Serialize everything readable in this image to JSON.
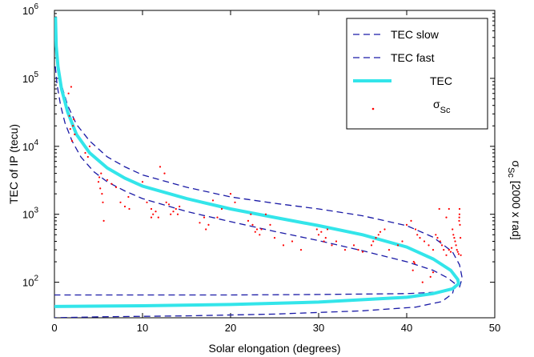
{
  "chart_data": {
    "type": "line",
    "xlabel": "Solar elongation (degrees)",
    "ylabel": "TEC of IP (tecu)",
    "ylabel_right": "σ_Sc [2000 x rad]",
    "xlim": [
      0,
      50
    ],
    "ylim": [
      30,
      1000000
    ],
    "yscale": "log",
    "grid": false,
    "legend_position": "top-right",
    "x_ticks": [
      "0",
      "10",
      "20",
      "30",
      "40",
      "50"
    ],
    "y_ticks": [
      {
        "base": "10",
        "exp": "2",
        "value": 100
      },
      {
        "base": "10",
        "exp": "3",
        "value": 1000
      },
      {
        "base": "10",
        "exp": "4",
        "value": 10000
      },
      {
        "base": "10",
        "exp": "5",
        "value": 100000
      },
      {
        "base": "10",
        "exp": "6",
        "value": 1000000
      }
    ],
    "legend": [
      {
        "label": "TEC slow",
        "style": "dashed",
        "color": "#1a1aa6"
      },
      {
        "label": "TEC fast",
        "style": "dashed",
        "color": "#1a1aa6"
      },
      {
        "label": "TEC",
        "style": "solid",
        "color": "#33e5ea"
      },
      {
        "label": "σ",
        "sub": "Sc",
        "style": "dot",
        "color": "#ff0000"
      }
    ],
    "series": [
      {
        "name": "TEC slow",
        "color": "#1a1aa6",
        "points": [
          [
            0.15,
            300000
          ],
          [
            0.4,
            150000
          ],
          [
            0.8,
            80000
          ],
          [
            1.5,
            40000
          ],
          [
            2.5,
            21000
          ],
          [
            4,
            12000
          ],
          [
            6,
            7000
          ],
          [
            8,
            5000
          ],
          [
            10,
            3800
          ],
          [
            15,
            2500
          ],
          [
            20,
            1800
          ],
          [
            25,
            1450
          ],
          [
            30,
            1200
          ],
          [
            35,
            950
          ],
          [
            40,
            680
          ],
          [
            43,
            460
          ],
          [
            45.2,
            280
          ],
          [
            46,
            180
          ],
          [
            46.3,
            115
          ],
          [
            46,
            85
          ],
          [
            44,
            72
          ],
          [
            40,
            68
          ],
          [
            30,
            66
          ],
          [
            20,
            65
          ],
          [
            10,
            65
          ],
          [
            0,
            65
          ]
        ]
      },
      {
        "name": "TEC fast",
        "color": "#1a1aa6",
        "points": [
          [
            0.1,
            150000
          ],
          [
            0.3,
            80000
          ],
          [
            0.7,
            40000
          ],
          [
            1.2,
            22000
          ],
          [
            2,
            12000
          ],
          [
            3,
            7000
          ],
          [
            4.5,
            4200
          ],
          [
            6,
            3000
          ],
          [
            8,
            2200
          ],
          [
            10,
            1700
          ],
          [
            15,
            1100
          ],
          [
            20,
            780
          ],
          [
            25,
            560
          ],
          [
            30,
            410
          ],
          [
            35,
            290
          ],
          [
            40,
            200
          ],
          [
            43,
            150
          ],
          [
            44.7,
            115
          ],
          [
            45.5,
            95
          ],
          [
            45.2,
            68
          ],
          [
            44,
            52
          ],
          [
            41,
            43
          ],
          [
            35,
            38
          ],
          [
            25,
            34
          ],
          [
            15,
            32
          ],
          [
            5,
            31
          ],
          [
            0,
            30
          ]
        ]
      },
      {
        "name": "TEC",
        "color": "#33e5ea",
        "points": [
          [
            0.12,
            800000
          ],
          [
            0.2,
            300000
          ],
          [
            0.4,
            150000
          ],
          [
            0.8,
            70000
          ],
          [
            1.5,
            32000
          ],
          [
            2.5,
            15000
          ],
          [
            4,
            8000
          ],
          [
            6,
            4800
          ],
          [
            8,
            3400
          ],
          [
            10,
            2600
          ],
          [
            15,
            1700
          ],
          [
            20,
            1200
          ],
          [
            25,
            900
          ],
          [
            30,
            680
          ],
          [
            35,
            500
          ],
          [
            40,
            330
          ],
          [
            43,
            220
          ],
          [
            45,
            150
          ],
          [
            45.8,
            110
          ],
          [
            45.9,
            95
          ],
          [
            45.2,
            80
          ],
          [
            43,
            68
          ],
          [
            40,
            60
          ],
          [
            30,
            51
          ],
          [
            20,
            47
          ],
          [
            10,
            45
          ],
          [
            0,
            44
          ]
        ]
      },
      {
        "name": "σSc",
        "color": "#ff0000",
        "points": [
          [
            1.6,
            60000
          ],
          [
            1.9,
            75000
          ],
          [
            2.1,
            20000
          ],
          [
            1.8,
            18000
          ],
          [
            2.3,
            15000
          ],
          [
            2.0,
            12000
          ],
          [
            1.7,
            28000
          ],
          [
            2.2,
            25000
          ],
          [
            3.5,
            8000
          ],
          [
            4.0,
            10000
          ],
          [
            3.8,
            7000
          ],
          [
            5.0,
            3000
          ],
          [
            5.2,
            2400
          ],
          [
            5.5,
            1500
          ],
          [
            5.6,
            800
          ],
          [
            5.3,
            4000
          ],
          [
            5.4,
            2000
          ],
          [
            5.1,
            3500
          ],
          [
            6.0,
            3200
          ],
          [
            6.5,
            2800
          ],
          [
            7.0,
            2500
          ],
          [
            7.5,
            1500
          ],
          [
            8.0,
            1300
          ],
          [
            8.4,
            1800
          ],
          [
            8.5,
            1200
          ],
          [
            10,
            3000
          ],
          [
            10.5,
            1500
          ],
          [
            11,
            1200
          ],
          [
            11.5,
            1100
          ],
          [
            11,
            900
          ],
          [
            11.2,
            1000
          ],
          [
            11.8,
            900
          ],
          [
            12.0,
            5000
          ],
          [
            12.5,
            4000
          ],
          [
            12.7,
            1500
          ],
          [
            13,
            1400
          ],
          [
            13.2,
            1000
          ],
          [
            13.5,
            1100
          ],
          [
            13.8,
            1200
          ],
          [
            14.0,
            1000
          ],
          [
            14.2,
            1300
          ],
          [
            16.5,
            750
          ],
          [
            17,
            900
          ],
          [
            17.5,
            700
          ],
          [
            17.2,
            600
          ],
          [
            18,
            1600
          ],
          [
            18.5,
            900
          ],
          [
            19,
            1200
          ],
          [
            20.0,
            2000
          ],
          [
            20.5,
            1500
          ],
          [
            22.0,
            800
          ],
          [
            22.3,
            1000
          ],
          [
            22.5,
            700
          ],
          [
            22.8,
            550
          ],
          [
            23,
            600
          ],
          [
            23.3,
            500
          ],
          [
            23.5,
            600
          ],
          [
            24,
            1000
          ],
          [
            24.5,
            700
          ],
          [
            25,
            450
          ],
          [
            26,
            350
          ],
          [
            27,
            400
          ],
          [
            28,
            300
          ],
          [
            29.8,
            600
          ],
          [
            30.0,
            500
          ],
          [
            30.3,
            550
          ],
          [
            30.6,
            400
          ],
          [
            30.8,
            450
          ],
          [
            31,
            600
          ],
          [
            31.5,
            350
          ],
          [
            32,
            400
          ],
          [
            33,
            300
          ],
          [
            34,
            350
          ],
          [
            34.5,
            300
          ],
          [
            35,
            280
          ],
          [
            36,
            350
          ],
          [
            36.2,
            400
          ],
          [
            36.5,
            450
          ],
          [
            36.8,
            500
          ],
          [
            37,
            550
          ],
          [
            37.5,
            600
          ],
          [
            38,
            300
          ],
          [
            39,
            350
          ],
          [
            39.5,
            400
          ],
          [
            40,
            700
          ],
          [
            40.5,
            800
          ],
          [
            41,
            600
          ],
          [
            41.2,
            500
          ],
          [
            41.5,
            450
          ],
          [
            42,
            400
          ],
          [
            42.5,
            350
          ],
          [
            43,
            300
          ],
          [
            43.3,
            500
          ],
          [
            43.5,
            450
          ],
          [
            43.8,
            400
          ],
          [
            44,
            350
          ],
          [
            44.2,
            300
          ],
          [
            44.5,
            250
          ],
          [
            44.8,
            300
          ],
          [
            45,
            280
          ],
          [
            45.1,
            320
          ],
          [
            45.2,
            600
          ],
          [
            45.3,
            500
          ],
          [
            45.4,
            450
          ],
          [
            45.5,
            400
          ],
          [
            45.6,
            350
          ],
          [
            45.7,
            300
          ],
          [
            45.8,
            280
          ],
          [
            45.9,
            260
          ],
          [
            45.95,
            800
          ],
          [
            45.97,
            900
          ],
          [
            45.99,
            1000
          ],
          [
            46,
            1200
          ],
          [
            46.05,
            700
          ],
          [
            46.1,
            450
          ],
          [
            46.15,
            250
          ],
          [
            44.5,
            900
          ],
          [
            43.7,
            1200
          ],
          [
            44.8,
            1200
          ],
          [
            42.7,
            120
          ],
          [
            43,
            140
          ],
          [
            41.8,
            100
          ],
          [
            40.8,
            200
          ],
          [
            40.9,
            190
          ],
          [
            40.7,
            150
          ]
        ]
      }
    ]
  }
}
